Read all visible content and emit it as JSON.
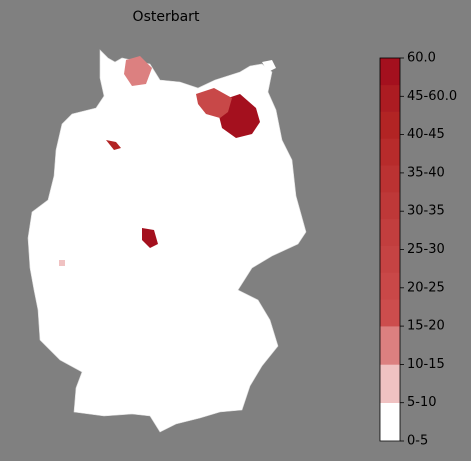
{
  "map": {
    "title": "Osterbart",
    "colorbar": {
      "ticks": [
        "0-5",
        "5-10",
        "10-15",
        "15-20",
        "20-25",
        "25-30",
        "30-35",
        "35-40",
        "40-45",
        "45-60.0",
        "60.0"
      ],
      "colors": [
        "#ffffff",
        "#f0c2c2",
        "#dc8080",
        "#cc4d4d",
        "#c94848",
        "#c54343",
        "#c23e3e",
        "#be3838",
        "#bb3232",
        "#b72b2b",
        "#b22424",
        "#ac1c22",
        "#a4101e"
      ]
    }
  }
}
